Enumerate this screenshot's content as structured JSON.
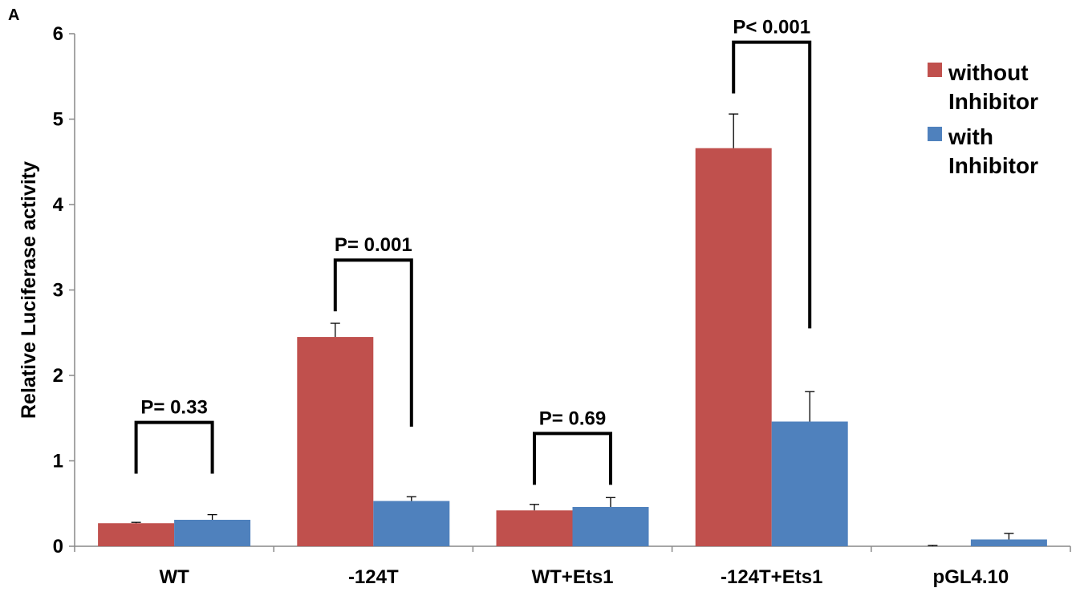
{
  "panel_label": "A",
  "chart_data": {
    "type": "bar",
    "categories": [
      "WT",
      "-124T",
      "WT+Ets1",
      "-124T+Ets1",
      "pGL4.10"
    ],
    "series": [
      {
        "name": "without Inhibitor",
        "legend_lines": [
          "without",
          "Inhibitor"
        ],
        "color": "#C0504D",
        "values": [
          0.27,
          2.45,
          0.42,
          4.66,
          0.0
        ],
        "errors": [
          0.01,
          0.16,
          0.07,
          0.4,
          0.01
        ]
      },
      {
        "name": "with Inhibitor",
        "legend_lines": [
          "with",
          "Inhibitor"
        ],
        "color": "#4F81BD",
        "values": [
          0.31,
          0.53,
          0.46,
          1.46,
          0.08
        ],
        "errors": [
          0.06,
          0.05,
          0.11,
          0.35,
          0.07
        ]
      }
    ],
    "ylabel": "Relative Luciferase activity",
    "xlabel": "",
    "ylim": [
      0,
      6
    ],
    "yticks": [
      "0",
      "1",
      "2",
      "3",
      "4",
      "5",
      "6"
    ],
    "grid": false,
    "legend_position": "top-right",
    "significance": [
      {
        "category_index": 0,
        "label": "P= 0.33",
        "left_y": 0.85,
        "right_y": 0.85
      },
      {
        "category_index": 1,
        "label": "P= 0.001",
        "left_y": 2.75,
        "right_y": 1.4
      },
      {
        "category_index": 2,
        "label": "P= 0.69",
        "left_y": 0.72,
        "right_y": 0.72
      },
      {
        "category_index": 3,
        "label": "P< 0.001",
        "left_y": 5.3,
        "right_y": 2.55
      }
    ]
  }
}
